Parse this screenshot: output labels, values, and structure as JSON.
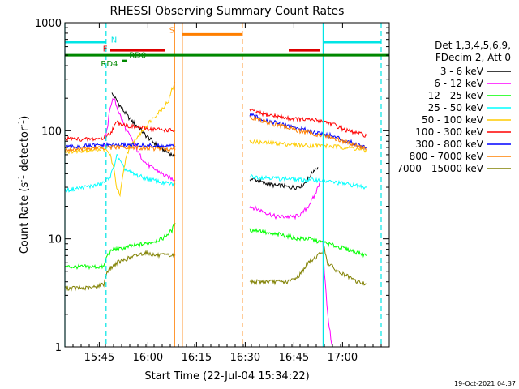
{
  "colors": {
    "background": "#ffffff",
    "axes": "#000000",
    "night_lines": "#00e5e5",
    "saa_lines": "#ff7f00",
    "attenuator": "#008800",
    "flare": "#dd0000"
  },
  "chart_data": {
    "type": "line",
    "title": "RHESSI Observing Summary Count Rates",
    "xlabel": "Start Time (22-Jul-04 15:34:22)",
    "ylabel": "Count Rate (s⁻¹ detector⁻¹)",
    "ylabel_main": "Count Rate (s",
    "ylabel_sup1": "-1",
    "ylabel_mid": " detector",
    "ylabel_sup2": "-1",
    "ylabel_end": ")",
    "x_unit": "minutes since 15:34:22",
    "xlim": [
      0,
      100
    ],
    "ylim": [
      1,
      1000
    ],
    "yscale": "log",
    "x_ticks": [
      {
        "x": 10.6,
        "label": "15:45"
      },
      {
        "x": 25.6,
        "label": "16:00"
      },
      {
        "x": 40.6,
        "label": "16:15"
      },
      {
        "x": 55.6,
        "label": "16:30"
      },
      {
        "x": 70.6,
        "label": "16:45"
      },
      {
        "x": 85.6,
        "label": "17:00"
      }
    ],
    "y_ticks": [
      {
        "y": 1,
        "label": "1"
      },
      {
        "y": 10,
        "label": "10"
      },
      {
        "y": 100,
        "label": "100"
      },
      {
        "y": 1000,
        "label": "1000"
      }
    ],
    "legend_header": [
      "Det 1,3,4,5,6,9,",
      "FDecim 2, Att 0"
    ],
    "legend_placement": "right",
    "timestamp": "19-Oct-2021 04:37",
    "series": [
      {
        "name": "3 - 6 keV",
        "color": "#000000",
        "segments": [
          {
            "x": [
              14.5,
              15.5,
              17,
              19,
              21,
              23,
              25,
              27,
              29,
              31,
              33,
              34
            ],
            "y": [
              220,
              200,
              170,
              140,
              120,
              105,
              90,
              80,
              70,
              65,
              60,
              58
            ]
          },
          {
            "x": [
              57,
              59,
              61,
              63,
              65,
              67,
              69,
              71,
              73,
              74,
              75,
              76,
              77,
              78
            ],
            "y": [
              36,
              35,
              33,
              32,
              31,
              31,
              30,
              30,
              31,
              33,
              36,
              40,
              44,
              46
            ]
          }
        ]
      },
      {
        "name": "6 - 12 keV",
        "color": "#ff00ff",
        "segments": [
          {
            "x": [
              12,
              13,
              14,
              15,
              17,
              19,
              21,
              23,
              25,
              27,
              29,
              31,
              33,
              34
            ],
            "y": [
              70,
              100,
              170,
              200,
              140,
              100,
              80,
              60,
              50,
              45,
              42,
              38,
              36,
              35
            ]
          },
          {
            "x": [
              57,
              59,
              61,
              63,
              65,
              67,
              69,
              71,
              73,
              75,
              77,
              78,
              78.5
            ],
            "y": [
              20,
              19,
              18,
              17,
              16,
              16,
              16,
              16,
              17,
              20,
              25,
              30,
              33
            ]
          },
          {
            "x": [
              79.5,
              80,
              81,
              82,
              82.5
            ],
            "y": [
              10,
              5,
              2,
              1.2,
              1
            ]
          }
        ]
      },
      {
        "name": "12 - 25 keV",
        "color": "#00ff00",
        "segments": [
          {
            "x": [
              0,
              5,
              10,
              12,
              13,
              15,
              17,
              20,
              25,
              30,
              33,
              34
            ],
            "y": [
              5.5,
              5.5,
              5.5,
              5.5,
              7,
              8,
              8,
              8.5,
              9,
              10,
              12,
              14
            ]
          },
          {
            "x": [
              57,
              60,
              63,
              66,
              69,
              72,
              75,
              78,
              81,
              84,
              87,
              90,
              93
            ],
            "y": [
              12,
              12,
              11,
              11,
              10.5,
              10,
              10,
              9.5,
              9,
              8.5,
              8,
              7.5,
              7
            ]
          }
        ]
      },
      {
        "name": "25 - 50 keV",
        "color": "#00ffff",
        "segments": [
          {
            "x": [
              0,
              3,
              6,
              9,
              11,
              12.5,
              14,
              15,
              16,
              17,
              18,
              19,
              21,
              24,
              27,
              30,
              33,
              34
            ],
            "y": [
              28,
              29,
              30,
              31,
              32,
              34,
              38,
              45,
              60,
              52,
              46,
              43,
              40,
              37,
              35,
              33,
              32,
              32
            ]
          },
          {
            "x": [
              57,
              60,
              63,
              66,
              69,
              72,
              75,
              78,
              81,
              84,
              87,
              90,
              93
            ],
            "y": [
              38,
              37,
              37,
              36,
              36,
              35,
              35,
              35,
              34,
              33,
              32,
              31,
              30
            ]
          }
        ]
      },
      {
        "name": "50 - 100 keV",
        "color": "#ffcc00",
        "segments": [
          {
            "x": [
              0,
              3,
              6,
              9,
              12,
              14,
              15,
              16,
              17,
              18,
              19,
              20,
              22,
              24,
              26,
              28,
              30,
              32,
              33,
              34
            ],
            "y": [
              64,
              65,
              66,
              67,
              68,
              60,
              45,
              30,
              25,
              40,
              60,
              70,
              85,
              100,
              120,
              140,
              160,
              190,
              240,
              280
            ]
          },
          {
            "x": [
              57,
              60,
              63,
              66,
              69,
              72,
              75,
              78,
              81,
              84,
              87,
              90,
              93
            ],
            "y": [
              80,
              78,
              77,
              76,
              75,
              74,
              73,
              73,
              72,
              71,
              70,
              68,
              65
            ]
          }
        ]
      },
      {
        "name": "100 - 300 keV",
        "color": "#ff0000",
        "segments": [
          {
            "x": [
              0,
              3,
              6,
              9,
              12,
              14,
              16,
              18,
              20,
              22,
              24,
              26,
              28,
              30,
              32,
              34
            ],
            "y": [
              85,
              84,
              83,
              84,
              85,
              95,
              120,
              115,
              110,
              108,
              106,
              104,
              103,
              102,
              101,
              100
            ]
          },
          {
            "x": [
              57,
              60,
              63,
              66,
              69,
              72,
              75,
              78,
              81,
              84,
              87,
              90,
              93
            ],
            "y": [
              155,
              145,
              140,
              135,
              130,
              128,
              126,
              125,
              120,
              110,
              100,
              95,
              90
            ]
          }
        ]
      },
      {
        "name": "300 - 800 keV",
        "color": "#0000ff",
        "segments": [
          {
            "x": [
              0,
              5,
              10,
              15,
              20,
              25,
              30,
              34
            ],
            "y": [
              70,
              72,
              73,
              74,
              74,
              73,
              72,
              72
            ]
          },
          {
            "x": [
              57,
              62,
              67,
              72,
              77,
              82,
              87,
              93
            ],
            "y": [
              140,
              125,
              115,
              105,
              97,
              90,
              80,
              70
            ]
          }
        ]
      },
      {
        "name": "800 - 7000 keV",
        "color": "#ff8000",
        "segments": [
          {
            "x": [
              0,
              5,
              10,
              15,
              20,
              25,
              30,
              34
            ],
            "y": [
              67,
              68,
              69,
              70,
              70,
              69,
              68,
              68
            ]
          },
          {
            "x": [
              57,
              62,
              67,
              72,
              77,
              82,
              87,
              93
            ],
            "y": [
              135,
              120,
              110,
              100,
              93,
              87,
              78,
              68
            ]
          }
        ]
      },
      {
        "name": "7000 - 15000 keV",
        "color": "#808000",
        "segments": [
          {
            "x": [
              0,
              4,
              8,
              12,
              13,
              16,
              19,
              22,
              25,
              28,
              31,
              34
            ],
            "y": [
              3.5,
              3.5,
              3.5,
              3.8,
              5,
              6,
              6.5,
              7,
              7.5,
              7,
              7,
              7
            ]
          },
          {
            "x": [
              57,
              60,
              63,
              66,
              69,
              72,
              75,
              78,
              80,
              81,
              84,
              87,
              90,
              93
            ],
            "y": [
              4,
              4,
              4,
              4,
              4,
              4.5,
              6,
              7,
              8,
              6,
              5,
              4.5,
              4,
              3.8
            ]
          }
        ]
      }
    ],
    "vertical_lines": [
      {
        "x": 0,
        "color_key": "night_lines",
        "style": "solid"
      },
      {
        "x": 12.7,
        "color_key": "night_lines",
        "style": "dashed"
      },
      {
        "x": 33.8,
        "color_key": "saa_lines",
        "style": "solid"
      },
      {
        "x": 36.2,
        "color_key": "saa_lines",
        "style": "solid"
      },
      {
        "x": 54.7,
        "color_key": "saa_lines",
        "style": "dashed"
      },
      {
        "x": 79.6,
        "color_key": "night_lines",
        "style": "solid"
      },
      {
        "x": 97.5,
        "color_key": "night_lines",
        "style": "dashed"
      }
    ],
    "flag_bars": [
      {
        "label": "N",
        "color_key": "night_lines",
        "level": 660,
        "segments": [
          [
            0,
            12.7
          ],
          [
            79.6,
            97.5
          ]
        ],
        "label_at": 14.2,
        "label_level": 700
      },
      {
        "label": "F",
        "color_key": "flare",
        "level": 555,
        "segments": [
          [
            14,
            31
          ],
          [
            69,
            78.5
          ]
        ],
        "label_at": 11.7,
        "label_level": 580
      },
      {
        "label": "S",
        "color_key": "saa_lines",
        "level": 780,
        "segments": [
          [
            36.2,
            54.7
          ]
        ],
        "label_at": 32.2,
        "label_level": 860
      },
      {
        "label": "RD0",
        "color_key": "attenuator",
        "level": 500,
        "segments": [
          [
            0,
            100
          ]
        ],
        "label_at": 19.8,
        "label_level": 505
      },
      {
        "label": "RD4",
        "color_key": "attenuator",
        "level": 443,
        "segments": [
          [
            17.5,
            19
          ]
        ],
        "label_at": 11.1,
        "label_level": 420
      }
    ]
  }
}
